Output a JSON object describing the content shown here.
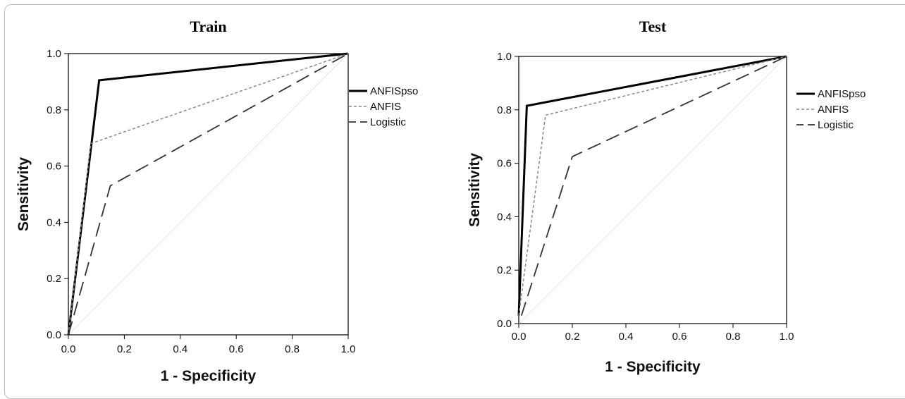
{
  "chart_data": [
    {
      "type": "line",
      "title": "Train",
      "xlabel": "1 - Specificity",
      "ylabel": "Sensitivity",
      "xlim": [
        0,
        1
      ],
      "ylim": [
        0,
        1
      ],
      "xticks": [
        "0.0",
        "0.2",
        "0.4",
        "0.6",
        "0.8",
        "1.0"
      ],
      "yticks": [
        "0.0",
        "0.2",
        "0.4",
        "0.6",
        "0.8",
        "1.0"
      ],
      "grid": false,
      "legend_position": "right",
      "series": [
        {
          "name": "ANFISpso",
          "style": "solid",
          "points": [
            [
              0,
              0
            ],
            [
              0.11,
              0.905
            ],
            [
              1,
              1
            ]
          ]
        },
        {
          "name": "ANFIS",
          "style": "dotted",
          "points": [
            [
              0,
              0
            ],
            [
              0.08,
              0.68
            ],
            [
              1,
              1
            ]
          ]
        },
        {
          "name": "Logistic",
          "style": "dashed",
          "points": [
            [
              0,
              0
            ],
            [
              0.15,
              0.53
            ],
            [
              1,
              1
            ]
          ]
        }
      ]
    },
    {
      "type": "line",
      "title": "Test",
      "xlabel": "1 - Specificity",
      "ylabel": "Sensitivity",
      "xlim": [
        0,
        1
      ],
      "ylim": [
        0,
        1
      ],
      "xticks": [
        "0.0",
        "0.2",
        "0.4",
        "0.6",
        "0.8",
        "1.0"
      ],
      "yticks": [
        "0.0",
        "0.2",
        "0.4",
        "0.6",
        "0.8",
        "1.0"
      ],
      "grid": false,
      "legend_position": "right",
      "series": [
        {
          "name": "ANFISpso",
          "style": "solid",
          "points": [
            [
              0,
              0.03
            ],
            [
              0.03,
              0.815
            ],
            [
              1,
              1
            ]
          ]
        },
        {
          "name": "ANFIS",
          "style": "dotted",
          "points": [
            [
              0,
              0.03
            ],
            [
              0.1,
              0.78
            ],
            [
              1,
              1
            ]
          ]
        },
        {
          "name": "Logistic",
          "style": "dashed",
          "points": [
            [
              0.01,
              0.03
            ],
            [
              0.2,
              0.625
            ],
            [
              1,
              1
            ]
          ]
        }
      ]
    }
  ]
}
